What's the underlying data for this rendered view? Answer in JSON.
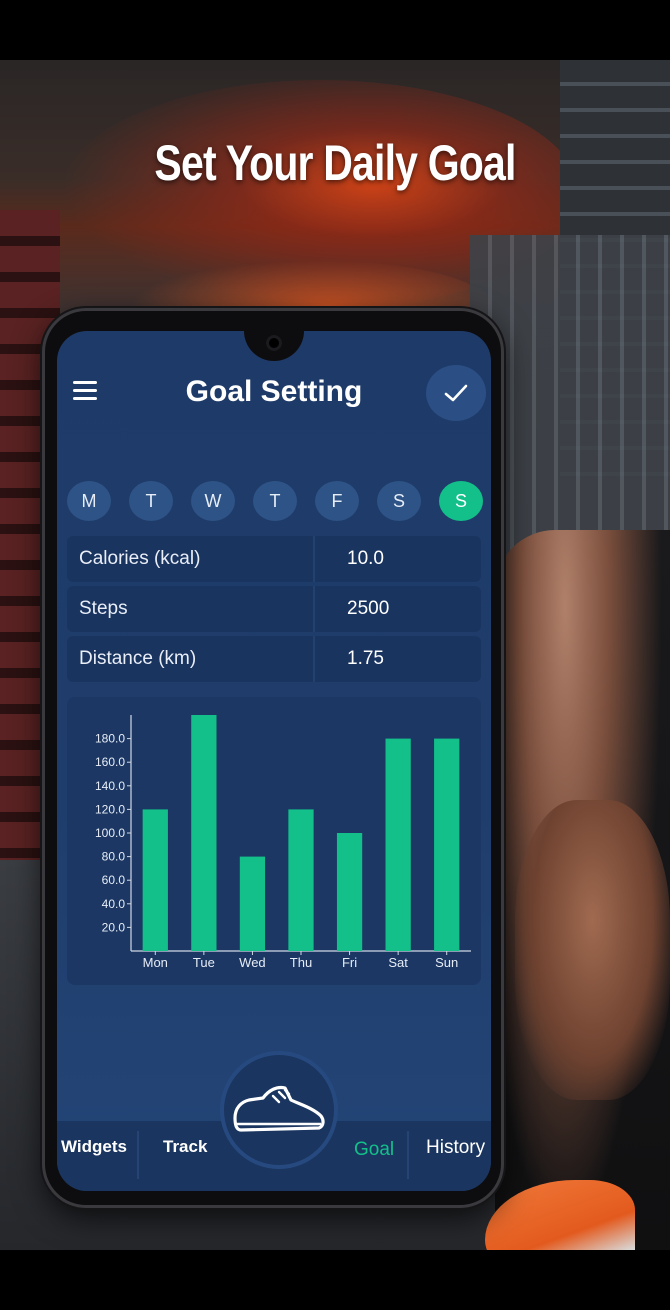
{
  "headline": "Set Your Daily Goal",
  "app": {
    "title": "Goal Setting"
  },
  "days": [
    {
      "label": "M",
      "active": false
    },
    {
      "label": "T",
      "active": false
    },
    {
      "label": "W",
      "active": false
    },
    {
      "label": "T",
      "active": false
    },
    {
      "label": "F",
      "active": false
    },
    {
      "label": "S",
      "active": false
    },
    {
      "label": "S",
      "active": true
    }
  ],
  "metrics": [
    {
      "label": "Calories (kcal)",
      "value": "10.0"
    },
    {
      "label": "Steps",
      "value": "2500"
    },
    {
      "label": "Distance (km)",
      "value": "1.75"
    }
  ],
  "nav": {
    "widgets": "Widgets",
    "track": "Track",
    "goal": "Goal",
    "history": "History"
  },
  "colors": {
    "accent": "#13c08a",
    "screen_bg": "#1e3a68",
    "day_bg": "#2e5386"
  },
  "icons": {
    "menu": "hamburger-menu-icon",
    "confirm": "checkmark-icon",
    "center_fab": "sneaker-icon"
  },
  "chart_data": {
    "type": "bar",
    "categories": [
      "Mon",
      "Tue",
      "Wed",
      "Thu",
      "Fri",
      "Sat",
      "Sun"
    ],
    "values": [
      120,
      200,
      80,
      120,
      100,
      180,
      180
    ],
    "yticks": [
      "20.0",
      "40.0",
      "60.0",
      "80.0",
      "100.0",
      "120.0",
      "140.0",
      "160.0",
      "180.0"
    ],
    "ylim": [
      0,
      200
    ],
    "title": "",
    "xlabel": "",
    "ylabel": "",
    "bar_color": "#13c08a",
    "grid": false
  }
}
